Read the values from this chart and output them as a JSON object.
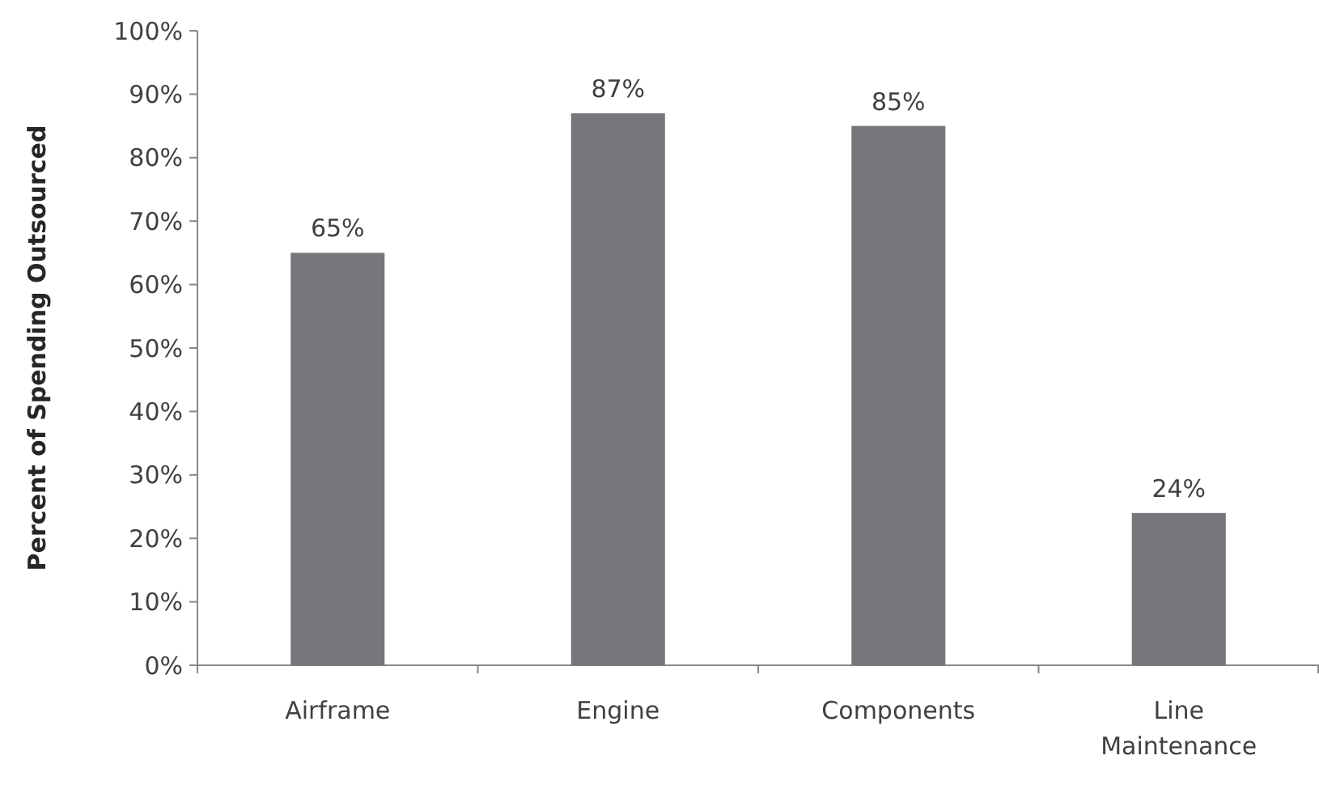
{
  "chart_data": {
    "type": "bar",
    "ylabel": "Percent of Spending Outsourced",
    "categories": [
      "Airframe",
      "Engine",
      "Components",
      "Line Maintenance"
    ],
    "values": [
      65,
      87,
      85,
      24
    ],
    "color": "#77777b",
    "value_labels": [
      "65%",
      "87%",
      "85%",
      "24%"
    ],
    "ylim": [
      0,
      100
    ],
    "yticks": [
      {
        "value": 0,
        "label": "0%"
      },
      {
        "value": 10,
        "label": "10%"
      },
      {
        "value": 20,
        "label": "20%"
      },
      {
        "value": 30,
        "label": "30%"
      },
      {
        "value": 40,
        "label": "40%"
      },
      {
        "value": 50,
        "label": "50%"
      },
      {
        "value": 60,
        "label": "60%"
      },
      {
        "value": 70,
        "label": "70%"
      },
      {
        "value": 80,
        "label": "80%"
      },
      {
        "value": 90,
        "label": "90%"
      },
      {
        "value": 100,
        "label": "100%"
      }
    ],
    "grid": false
  }
}
